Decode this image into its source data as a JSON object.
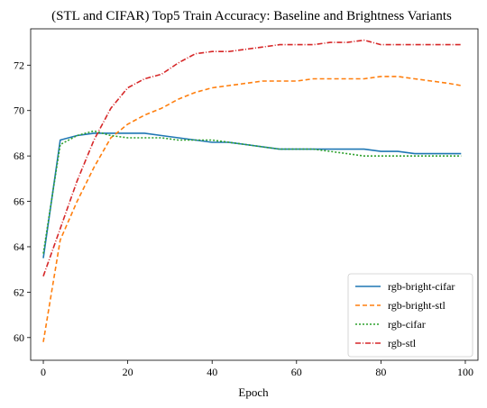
{
  "chart_data": {
    "type": "line",
    "title": "(STL and CIFAR) Top5 Train Accuracy: Baseline and Brightness Variants",
    "xlabel": "Epoch",
    "ylabel": "",
    "xlim": [
      -3,
      103
    ],
    "ylim": [
      59,
      73.6
    ],
    "xticks": [
      0,
      20,
      40,
      60,
      80,
      100
    ],
    "yticks": [
      60,
      62,
      64,
      66,
      68,
      70,
      72
    ],
    "grid": false,
    "legend_position": "bottom-right",
    "x": [
      0,
      4,
      8,
      12,
      16,
      20,
      24,
      28,
      32,
      36,
      40,
      44,
      48,
      52,
      56,
      60,
      64,
      68,
      72,
      76,
      80,
      84,
      88,
      92,
      96,
      99
    ],
    "series": [
      {
        "name": "rgb-bright-cifar",
        "color": "#1f77b4",
        "dash": "solid",
        "values": [
          63.5,
          68.7,
          68.9,
          69.0,
          69.0,
          69.0,
          69.0,
          68.9,
          68.8,
          68.7,
          68.6,
          68.6,
          68.5,
          68.4,
          68.3,
          68.3,
          68.3,
          68.3,
          68.3,
          68.3,
          68.2,
          68.2,
          68.1,
          68.1,
          68.1,
          68.1
        ]
      },
      {
        "name": "rgb-bright-stl",
        "color": "#ff7f0e",
        "dash": "5,3",
        "values": [
          59.8,
          64.3,
          66.0,
          67.5,
          68.8,
          69.4,
          69.8,
          70.1,
          70.5,
          70.8,
          71.0,
          71.1,
          71.2,
          71.3,
          71.3,
          71.3,
          71.4,
          71.4,
          71.4,
          71.4,
          71.5,
          71.5,
          71.4,
          71.3,
          71.2,
          71.1
        ]
      },
      {
        "name": "rgb-cifar",
        "color": "#2ca02c",
        "dash": "2,2",
        "values": [
          63.7,
          68.5,
          68.9,
          69.1,
          68.9,
          68.8,
          68.8,
          68.8,
          68.7,
          68.7,
          68.7,
          68.6,
          68.5,
          68.4,
          68.3,
          68.3,
          68.3,
          68.2,
          68.1,
          68.0,
          68.0,
          68.0,
          68.0,
          68.0,
          68.0,
          68.0
        ]
      },
      {
        "name": "rgb-stl",
        "color": "#d62728",
        "dash": "6,2,1,2",
        "values": [
          62.7,
          64.8,
          66.9,
          68.7,
          70.1,
          71.0,
          71.4,
          71.6,
          72.1,
          72.5,
          72.6,
          72.6,
          72.7,
          72.8,
          72.9,
          72.9,
          72.9,
          73.0,
          73.0,
          73.1,
          72.9,
          72.9,
          72.9,
          72.9,
          72.9,
          72.9
        ]
      }
    ]
  }
}
